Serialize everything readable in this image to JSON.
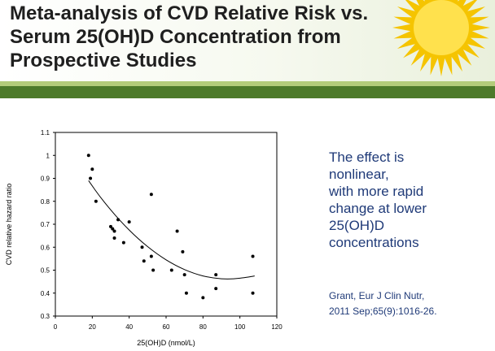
{
  "slide": {
    "title_lines": [
      "Meta-analysis of CVD Relative Risk vs.",
      "Serum 25(OH)D Concentration from",
      "Prospective Studies"
    ],
    "effect_lines": [
      "The effect is",
      "nonlinear,",
      "with more rapid",
      "change at lower",
      "25(OH)D",
      "concentrations"
    ],
    "citation_lines": [
      "Grant, Eur J Clin Nutr,",
      "2011 Sep;65(9):1016-26."
    ]
  },
  "colors": {
    "band_dark": "#4d7a2a",
    "band_light": "#b3cc7a",
    "text_blue": "#1f3a78",
    "sun": "#f5c400"
  },
  "chart_data": {
    "type": "scatter",
    "title": "",
    "xlabel": "25(OH)D (nmol/L)",
    "ylabel": "CVD relative hazard ratio",
    "xlim": [
      0,
      120
    ],
    "ylim": [
      0.3,
      1.1
    ],
    "x_ticks": [
      0,
      20,
      40,
      60,
      80,
      100,
      120
    ],
    "y_ticks": [
      0.3,
      0.4,
      0.5,
      0.6,
      0.7,
      0.8,
      0.9,
      1,
      1.1
    ],
    "grid": false,
    "points": [
      [
        18,
        1.0
      ],
      [
        19,
        0.9
      ],
      [
        20,
        0.94
      ],
      [
        22,
        0.8
      ],
      [
        30,
        0.69
      ],
      [
        31,
        0.68
      ],
      [
        32,
        0.67
      ],
      [
        32,
        0.64
      ],
      [
        34,
        0.72
      ],
      [
        37,
        0.62
      ],
      [
        40,
        0.71
      ],
      [
        47,
        0.6
      ],
      [
        48,
        0.54
      ],
      [
        52,
        0.56
      ],
      [
        52,
        0.83
      ],
      [
        53,
        0.5
      ],
      [
        63,
        0.5
      ],
      [
        66,
        0.67
      ],
      [
        69,
        0.58
      ],
      [
        70,
        0.48
      ],
      [
        71,
        0.4
      ],
      [
        80,
        0.38
      ],
      [
        87,
        0.48
      ],
      [
        87,
        0.42
      ],
      [
        107,
        0.56
      ],
      [
        107,
        0.4
      ]
    ],
    "fit_curve": [
      [
        18,
        0.89
      ],
      [
        25,
        0.81
      ],
      [
        35,
        0.715
      ],
      [
        45,
        0.635
      ],
      [
        55,
        0.57
      ],
      [
        65,
        0.52
      ],
      [
        75,
        0.485
      ],
      [
        85,
        0.465
      ],
      [
        95,
        0.46
      ],
      [
        105,
        0.47
      ],
      [
        108,
        0.475
      ]
    ]
  }
}
